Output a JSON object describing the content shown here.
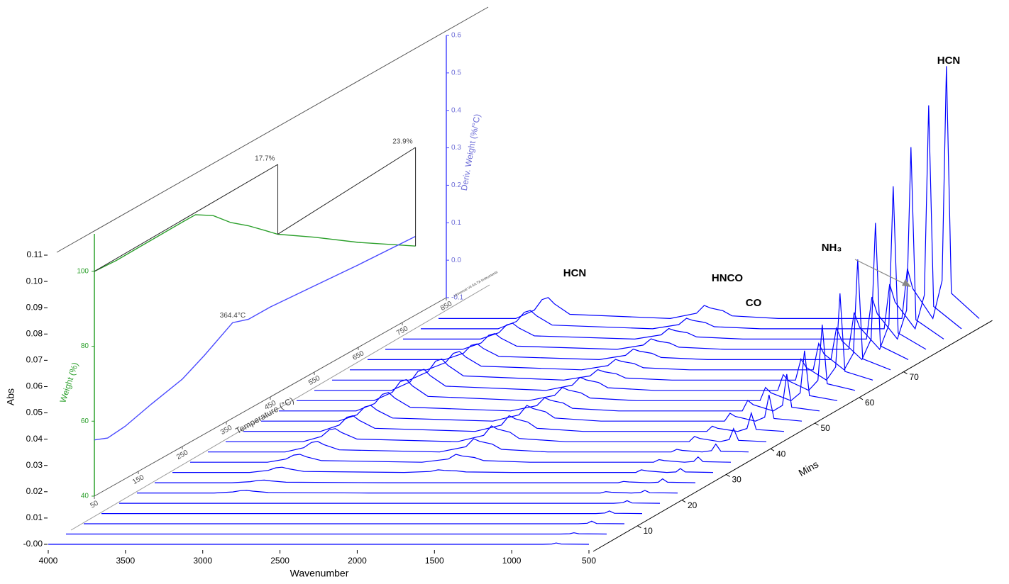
{
  "chart_data": [
    {
      "type": "waterfall",
      "xlabel": "Wavenumber",
      "ylabel": "Abs",
      "zlabel": "Mins",
      "color": "#0000ff",
      "xlim": [
        4000,
        500
      ],
      "xticks": [
        4000,
        3500,
        3000,
        2500,
        2000,
        1500,
        1000,
        500
      ],
      "ylim": [
        0,
        0.11
      ],
      "yticks": [
        {
          "value": 0,
          "label": "-0.00"
        },
        0.01,
        0.02,
        0.03,
        0.04,
        0.05,
        0.06,
        0.07,
        0.08,
        0.09,
        {
          "value": 0.1,
          "label": "0.10"
        },
        0.11
      ],
      "zlim": [
        0,
        90
      ],
      "zticks": [
        10,
        20,
        30,
        40,
        50,
        60,
        70
      ],
      "annotations": [
        "HCN",
        "HNCO",
        "CO",
        "NH₃",
        "HCN"
      ],
      "x": [
        4000,
        3500,
        3380,
        3330,
        3290,
        3250,
        3150,
        2500,
        2330,
        2280,
        2240,
        2160,
        2100,
        1800,
        1000,
        965,
        930,
        800,
        740,
        712,
        680,
        500
      ],
      "traces": [
        {
          "mins": 0,
          "values": [
            0,
            0,
            0,
            0,
            0,
            0,
            0,
            0,
            0,
            0,
            0,
            0,
            0,
            0,
            0,
            0,
            0,
            0,
            0.0001,
            0.0005,
            0.0001,
            0
          ]
        },
        {
          "mins": 4,
          "values": [
            0,
            0,
            0,
            0,
            0,
            0,
            0,
            0,
            0,
            0,
            0,
            0,
            0,
            0,
            0,
            0,
            0,
            0,
            0.0001,
            0.0005,
            0.0001,
            0
          ]
        },
        {
          "mins": 8,
          "values": [
            0,
            0,
            0,
            0,
            0,
            0,
            0,
            0,
            0,
            0,
            0,
            0,
            0,
            0,
            0,
            0,
            0,
            0,
            0.0002,
            0.001,
            0.0001,
            0
          ]
        },
        {
          "mins": 12,
          "values": [
            0,
            0,
            0,
            0,
            0,
            0,
            0,
            0,
            0,
            0,
            0,
            0,
            0,
            0,
            0,
            0,
            0,
            0,
            0.0002,
            0.001,
            0.0001,
            0
          ]
        },
        {
          "mins": 16,
          "values": [
            0,
            0,
            0,
            0,
            0,
            0,
            0,
            0,
            0,
            0,
            0,
            0,
            0,
            0,
            0,
            0,
            0,
            0,
            0.0002,
            0.001,
            0.0001,
            0
          ]
        },
        {
          "mins": 20,
          "values": [
            0,
            0,
            0.0004,
            0.0009,
            0.001,
            0.0007,
            0.0002,
            0,
            0,
            0,
            0,
            0,
            0,
            0,
            0,
            0.0005,
            0.0003,
            0,
            0.0002,
            0.001,
            0.0001,
            0
          ]
        },
        {
          "mins": 24,
          "values": [
            0,
            0,
            0.0004,
            0.0009,
            0.001,
            0.0007,
            0.0002,
            0,
            0,
            0,
            0,
            0,
            0,
            0,
            0,
            0.0005,
            0.0003,
            0,
            0.0002,
            0.0015,
            0.0002,
            0
          ]
        },
        {
          "mins": 28,
          "values": [
            0,
            0,
            0.0008,
            0.0018,
            0.002,
            0.0014,
            0.0004,
            0,
            0.0004,
            0.001,
            0.0008,
            0.0006,
            0.0002,
            0,
            0,
            0.001,
            0.0006,
            0,
            0.0002,
            0.0015,
            0.0002,
            0
          ]
        },
        {
          "mins": 32,
          "values": [
            0,
            0,
            0.0012,
            0.0027,
            0.003,
            0.0021,
            0.0006,
            0,
            0.0012,
            0.003,
            0.0024,
            0.0018,
            0.0006,
            0,
            0,
            0.001,
            0.0006,
            0,
            0.0003,
            0.002,
            0.0002,
            0
          ]
        },
        {
          "mins": 36,
          "values": [
            0,
            0,
            0.0016,
            0.0036,
            0.004,
            0.0028,
            0.0008,
            0,
            0.002,
            0.005,
            0.004,
            0.003,
            0.001,
            0,
            0,
            0.001,
            0.0006,
            0,
            0.0005,
            0.003,
            0.0003,
            0
          ]
        },
        {
          "mins": 40,
          "values": [
            0,
            0,
            0.002,
            0.0045,
            0.005,
            0.0035,
            0.001,
            0,
            0.0024,
            0.006,
            0.0048,
            0.0036,
            0.0012,
            0,
            0,
            0.002,
            0.0012,
            0,
            0.0008,
            0.005,
            0.0005,
            0
          ]
        },
        {
          "mins": 44,
          "values": [
            0,
            0,
            0.0024,
            0.0054,
            0.006,
            0.0042,
            0.0012,
            0,
            0.0024,
            0.006,
            0.0048,
            0.0036,
            0.0012,
            0,
            0,
            0.002,
            0.0012,
            0,
            0.0011,
            0.007,
            0.0007,
            0
          ]
        },
        {
          "mins": 48,
          "values": [
            0,
            0,
            0.0024,
            0.0054,
            0.006,
            0.0042,
            0.0012,
            0,
            0.0024,
            0.006,
            0.0048,
            0.0036,
            0.0012,
            0,
            0,
            0.003,
            0.0018,
            0,
            0.0015,
            0.01,
            0.001,
            0
          ]
        },
        {
          "mins": 52,
          "values": [
            0,
            0,
            0.0028,
            0.0063,
            0.007,
            0.0049,
            0.0014,
            0,
            0.002,
            0.005,
            0.004,
            0.003,
            0.001,
            0,
            0,
            0.004,
            0.0024,
            0,
            0.0021,
            0.014,
            0.0014,
            0
          ]
        },
        {
          "mins": 56,
          "values": [
            0,
            0,
            0.0032,
            0.0072,
            0.008,
            0.0056,
            0.0016,
            0,
            0.002,
            0.005,
            0.004,
            0.003,
            0.001,
            0,
            0,
            0.005,
            0.003,
            0,
            0.0029,
            0.019,
            0.0019,
            0
          ]
        },
        {
          "mins": 60,
          "values": [
            0,
            0,
            0.0032,
            0.0072,
            0.008,
            0.0056,
            0.0016,
            0,
            0.002,
            0.005,
            0.004,
            0.003,
            0.001,
            0,
            0,
            0.006,
            0.0036,
            0,
            0.0038,
            0.025,
            0.0025,
            0
          ]
        },
        {
          "mins": 64,
          "values": [
            0,
            0,
            0.0032,
            0.0072,
            0.008,
            0.0056,
            0.0016,
            0,
            0.0016,
            0.004,
            0.0032,
            0.0024,
            0.0008,
            0,
            0,
            0.008,
            0.0048,
            0,
            0.005,
            0.033,
            0.0033,
            0
          ]
        },
        {
          "mins": 68,
          "values": [
            0,
            0,
            0.0028,
            0.0063,
            0.007,
            0.0049,
            0.0014,
            0,
            0.0016,
            0.004,
            0.0032,
            0.0024,
            0.0008,
            0,
            0,
            0.01,
            0.006,
            0,
            0.0063,
            0.042,
            0.0042,
            0
          ]
        },
        {
          "mins": 72,
          "values": [
            0,
            0,
            0.0024,
            0.0054,
            0.006,
            0.0042,
            0.0012,
            0,
            0.0016,
            0.004,
            0.0032,
            0.0024,
            0.0008,
            0,
            0,
            0.012,
            0.0072,
            0,
            0.0078,
            0.052,
            0.0052,
            0
          ]
        },
        {
          "mins": 76,
          "values": [
            0,
            0,
            0.0024,
            0.0054,
            0.006,
            0.0042,
            0.0012,
            0,
            0.0016,
            0.004,
            0.0032,
            0.0024,
            0.0008,
            0,
            0,
            0.014,
            0.0084,
            0,
            0.0093,
            0.062,
            0.0062,
            0
          ]
        },
        {
          "mins": 80,
          "values": [
            0,
            0,
            0.0024,
            0.0054,
            0.006,
            0.0042,
            0.0012,
            0,
            0.0016,
            0.004,
            0.0032,
            0.0024,
            0.0008,
            0,
            0,
            0.016,
            0.0096,
            0,
            0.011,
            0.073,
            0.0073,
            0
          ]
        },
        {
          "mins": 84,
          "values": [
            0,
            0,
            0.0028,
            0.0063,
            0.007,
            0.0049,
            0.0014,
            0,
            0.0016,
            0.004,
            0.0032,
            0.0024,
            0.0008,
            0,
            0,
            0.017,
            0.0102,
            0,
            0.0128,
            0.085,
            0.0085,
            0
          ]
        },
        {
          "mins": 88,
          "values": [
            0,
            0,
            0.0032,
            0.0072,
            0.008,
            0.0056,
            0.0016,
            0,
            0.002,
            0.005,
            0.004,
            0.003,
            0.001,
            0,
            0,
            0.019,
            0.0114,
            0,
            0.0144,
            0.096,
            0.0096,
            0
          ]
        }
      ]
    },
    {
      "type": "line",
      "xlabel": "Temperature (°C)",
      "ylabel": "Weight (%)",
      "y2label": "Deriv. Weight (%/°C)",
      "footnote": "Universal V4.5A TA Instruments",
      "xlim": [
        50,
        850
      ],
      "xticks": [
        50,
        150,
        250,
        350,
        450,
        550,
        650,
        750,
        850
      ],
      "ylim": [
        40,
        110
      ],
      "yticks": [
        40,
        60,
        80,
        100
      ],
      "y2lim": [
        -0.1,
        0.6
      ],
      "y2ticks": [
        -0.1,
        {
          "value": 0,
          "label": "0.0"
        },
        0.1,
        0.2,
        0.3,
        0.4,
        0.5,
        0.6
      ],
      "annotations": [
        "17.7%",
        "23.9%",
        "364.4°C"
      ],
      "series": [
        {
          "color": "#2ca02c",
          "x": [
            50,
            100,
            150,
            200,
            250,
            280,
            320,
            360,
            400,
            440,
            467,
            550,
            650,
            780
          ],
          "values": [
            100,
            99.6,
            99.7,
            99.8,
            99.9,
            99.9,
            97,
            92.5,
            89,
            85,
            82.3,
            76,
            68,
            58.4
          ]
        },
        {
          "color": "#4a4aff",
          "axis": "y2",
          "x": [
            50,
            80,
            120,
            180,
            250,
            300,
            364.4,
            400,
            450,
            550,
            650,
            780
          ],
          "values": [
            0.05,
            0.035,
            0.04,
            0.06,
            0.08,
            0.11,
            0.155,
            0.14,
            0.14,
            0.13,
            0.12,
            0.11
          ]
        }
      ]
    }
  ]
}
